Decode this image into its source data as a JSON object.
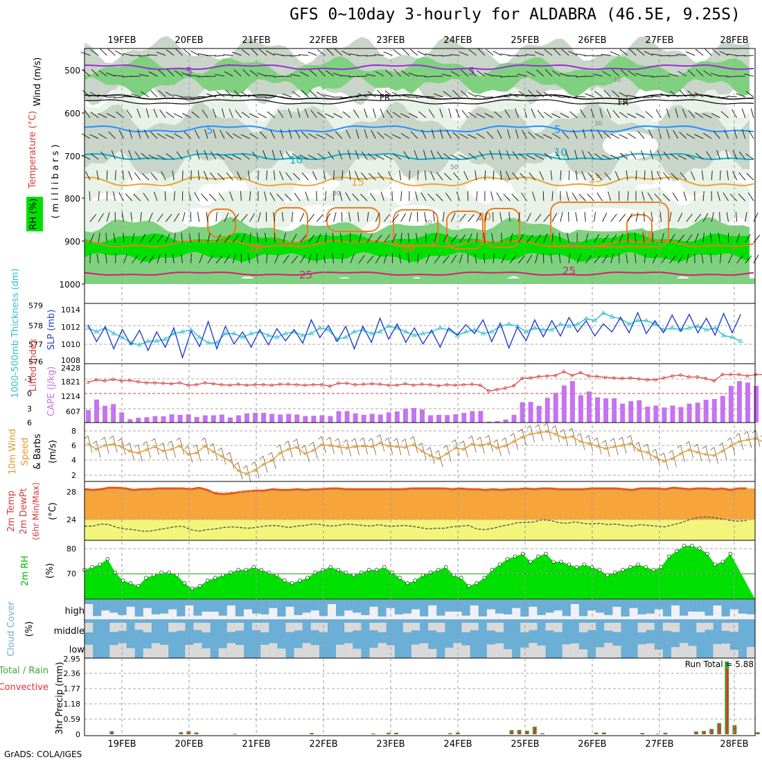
{
  "header": {
    "title": "GFS 0~10day 3-hourly for ALDABRA (46.5E, 9.25S)"
  },
  "footer": {
    "credit": "GrADS: COLA/IGES"
  },
  "dates": [
    "19FEB",
    "20FEB",
    "21FEB",
    "22FEB",
    "23FEB",
    "24FEB",
    "25FEB",
    "26FEB",
    "27FEB",
    "28FEB"
  ],
  "colors": {
    "rh_light": "#e8f2e8",
    "rh_grey": "#c9d5c9",
    "rh_mid": "#7fd17f",
    "rh_bright": "#00e000",
    "temp_5": "#9a2bd6",
    "temp_fr": "#000000",
    "temp_5b": "#1e90ff",
    "temp_10": "#00b2c8",
    "temp_15": "#e5a530",
    "temp_20": "#ee7a22",
    "temp_25": "#d81a7a",
    "slp": "#1f3fcf",
    "thickness": "#2fbfd0",
    "cape": "#c673f0",
    "li": "#d83a3a",
    "wind": "#e09a30",
    "temp2m": "#f7a43a",
    "temp2m_top": "#e45a12",
    "dewpt": "#f2f57a",
    "rh2m": "#00e000",
    "rh2m_dark": "#00b800",
    "cloud": "#6baed6",
    "cloud_clear": "#f2f0f7",
    "cloud_grey": "#d9d9d9",
    "precip_total": "#3aa832",
    "precip_conv": "#e03232"
  },
  "panels": {
    "upper": {
      "labels": {
        "rh": "RH (%)",
        "temp": "Temperature (°C)",
        "wind": "Wind (m/s)",
        "pressure": "( m i l l i b a r s )"
      },
      "ticks": [
        "500",
        "600",
        "700",
        "800",
        "900",
        "1000"
      ],
      "contour_labels": [
        "5",
        "5",
        "FR",
        "FR",
        "5",
        "5",
        "10",
        "10",
        "15",
        "15",
        "20",
        "20",
        "20",
        "20",
        "25",
        "25"
      ],
      "rh_labels": [
        "30",
        "50",
        "30",
        "30",
        "50",
        "30",
        "30"
      ]
    },
    "slp": {
      "labels": {
        "thickness": "1000-500mb Thickness (dm)",
        "slp": "SLP (mb)"
      },
      "left_ticks": [
        "579",
        "578",
        "577",
        "576"
      ],
      "right_ticks": [
        "1014",
        "1012",
        "1010",
        "1008"
      ]
    },
    "cape": {
      "labels": {
        "li": "Lifted Index",
        "cape": "CAPE (J/kg)"
      },
      "left_ticks": [
        "-3",
        "0",
        "3",
        "6"
      ],
      "right_ticks": [
        "2428",
        "1821",
        "1214",
        "607"
      ]
    },
    "wind10": {
      "labels": {
        "l1": "10m Wind",
        "l2": "Speed",
        "l3": "& Barbs",
        "unit": "(m/s)"
      },
      "ticks": [
        "8",
        "6",
        "4",
        "2"
      ]
    },
    "temp2m": {
      "labels": {
        "l1": "2m Temp",
        "l2": "2m DewPt",
        "l3": "(6hr Min/Max)",
        "unit": "(°C)"
      },
      "ticks": [
        "28",
        "24"
      ]
    },
    "rh2m": {
      "labels": {
        "l1": "2m RH",
        "unit": "(%)"
      },
      "ticks": [
        "80",
        "70"
      ]
    },
    "cloud": {
      "labels": {
        "l1": "Cloud Cover",
        "unit": "(%)"
      },
      "levels": [
        "high",
        "middle",
        "low"
      ]
    },
    "precip": {
      "labels": {
        "total": "Total / Rain",
        "conv": "Convective",
        "unit": "3hr Precip (mm)",
        "run_total_label": "Run Total = ",
        "run_total": "5.88"
      },
      "ticks": [
        "2.95",
        "2.36",
        "1.77",
        "1.18",
        "0.59",
        "0"
      ]
    }
  },
  "chart_data": [
    {
      "type": "line",
      "title": "SLP",
      "ylabel": "SLP (mb)",
      "ylim": [
        1008,
        1015
      ],
      "values": [
        1012.6,
        1010.5,
        1012.3,
        1009.6,
        1012.0,
        1010.1,
        1011.9,
        1009.4,
        1011.7,
        1009.8,
        1012.2,
        1008.5,
        1011.8,
        1009.9,
        1013.0,
        1009.6,
        1012.4,
        1010.2,
        1011.7,
        1009.8,
        1012.0,
        1010.1,
        1012.1,
        1010.6,
        1012.0,
        1010.3,
        1013.2,
        1011.0,
        1012.5,
        1010.5,
        1012.4,
        1009.6,
        1012.4,
        1010.4,
        1013.4,
        1010.8,
        1012.7,
        1010.4,
        1012.2,
        1010.2,
        1011.9,
        1009.8,
        1012.2,
        1011.3,
        1012.6,
        1011.5,
        1013.2,
        1010.5,
        1012.8,
        1009.7,
        1012.3,
        1010.6,
        1013.2,
        1011.1,
        1013.1,
        1011.2,
        1013.5,
        1011.7,
        1013.1,
        1011.2,
        1012.7,
        1011.7,
        1013.5,
        1011.6,
        1014.1,
        1011.5,
        1013.1,
        1011.6,
        1013.8,
        1011.8,
        1013.9,
        1011.6,
        1013.4,
        1011.3,
        1014.0,
        1011.6,
        1013.9
      ]
    },
    {
      "type": "line",
      "title": "1000-500mb Thickness",
      "ylabel": "(dm)",
      "ylim": [
        576,
        579
      ],
      "values": [
        577.8,
        577.6,
        577.8,
        577.5,
        577.3,
        577.0,
        576.9,
        577.1,
        577.1,
        577.2,
        577.5,
        577.6,
        577.7,
        577.3,
        577.0,
        577.0,
        577.5,
        577.5,
        577.3,
        577.5,
        577.6,
        577.4,
        577.3,
        577.5,
        577.6,
        577.4,
        577.5,
        577.8,
        577.7,
        577.2,
        577.3,
        577.6,
        577.7,
        577.5,
        577.6,
        577.9,
        577.8,
        577.6,
        577.4,
        577.5,
        577.6,
        577.8,
        577.7,
        577.4,
        577.6,
        577.7,
        577.5,
        577.6,
        577.9,
        578.0,
        577.9,
        577.6,
        577.8,
        577.7,
        577.7,
        578.0,
        577.9,
        578.0,
        578.3,
        578.2,
        578.6,
        578.4,
        578.3,
        578.0,
        578.2,
        578.2,
        578.0,
        577.7,
        577.8,
        577.7,
        577.8,
        577.9,
        577.7,
        577.8,
        577.4,
        577.3,
        577.1
      ]
    },
    {
      "type": "bar",
      "title": "CAPE",
      "ylabel": "CAPE (J/kg)",
      "ylim": [
        0,
        2428
      ],
      "values": [
        520,
        950,
        690,
        760,
        420,
        140,
        200,
        220,
        270,
        260,
        340,
        320,
        340,
        230,
        300,
        300,
        330,
        210,
        300,
        380,
        400,
        400,
        360,
        330,
        360,
        330,
        270,
        280,
        300,
        270,
        470,
        470,
        380,
        320,
        360,
        330,
        420,
        460,
        570,
        600,
        540,
        300,
        320,
        310,
        340,
        400,
        470,
        480,
        40,
        60,
        130,
        320,
        840,
        850,
        690,
        1020,
        1230,
        1530,
        1710,
        1130,
        1280,
        1040,
        1000,
        1000,
        780,
        880,
        920,
        660,
        700,
        620,
        700,
        640,
        780,
        820,
        940,
        970,
        1100,
        1510,
        1710,
        1650,
        1510,
        1250
      ]
    },
    {
      "type": "line",
      "title": "Lifted Index",
      "ylim": [
        -4.5,
        6
      ],
      "values": [
        -2.3,
        -2.8,
        -2.6,
        -2.9,
        -2.6,
        -2.7,
        -2.4,
        -2.2,
        -2.2,
        -2.1,
        -2.0,
        -2.2,
        -1.7,
        -1.8,
        -2.2,
        -2.0,
        -1.8,
        -1.7,
        -1.9,
        -1.7,
        -1.8,
        -1.8,
        -1.7,
        -1.9,
        -1.9,
        -1.8,
        -1.7,
        -1.8,
        -1.8,
        -1.5,
        -2.1,
        -2.1,
        -1.8,
        -1.9,
        -2.0,
        -1.9,
        -1.7,
        -1.7,
        -2.0,
        -1.7,
        -1.9,
        -1.8,
        -1.6,
        -1.8,
        -1.7,
        -1.8,
        -1.9,
        -1.7,
        -0.5,
        -0.8,
        -1.1,
        -1.6,
        -3.1,
        -3.2,
        -3.5,
        -3.6,
        -3.7,
        -4.5,
        -3.7,
        -4.3,
        -3.6,
        -3.5,
        -3.3,
        -3.2,
        -3.1,
        -3.2,
        -3.0,
        -2.8,
        -2.8,
        -3.2,
        -3.6,
        -3.8,
        -3.4,
        -3.4,
        -3.1,
        -2.6,
        -3.9,
        -3.9,
        -3.9,
        -3.6,
        -3.9,
        -3.9
      ]
    },
    {
      "type": "line",
      "title": "10m Wind Speed",
      "ylabel": "(m/s)",
      "ylim": [
        1.5,
        8.5
      ],
      "values": [
        6.4,
        5.6,
        6.2,
        6.4,
        6.0,
        5.3,
        5.0,
        5.5,
        6.0,
        5.3,
        5.6,
        6.1,
        4.8,
        5.0,
        6.1,
        5.2,
        4.5,
        3.8,
        2.2,
        1.7,
        2.3,
        3.2,
        3.8,
        5.0,
        5.6,
        5.9,
        4.9,
        5.4,
        6.3,
        6.2,
        6.0,
        5.8,
        6.0,
        6.1,
        6.0,
        6.6,
        6.1,
        6.0,
        5.9,
        6.3,
        5.3,
        4.6,
        4.1,
        4.9,
        5.8,
        5.6,
        6.4,
        6.2,
        6.5,
        5.8,
        6.1,
        6.8,
        7.5,
        8.0,
        8.2,
        8.4,
        8.0,
        7.4,
        7.6,
        6.8,
        6.5,
        6.1,
        5.7,
        6.0,
        6.2,
        6.5,
        5.4,
        5.1,
        4.3,
        3.7,
        4.1,
        4.9,
        5.5,
        5.1,
        4.8,
        4.6,
        5.3,
        6.1,
        6.8,
        7.1,
        7.3,
        6.7
      ]
    },
    {
      "type": "area",
      "title": "2m Temp",
      "ylabel": "(°C)",
      "ylim": [
        22,
        28.8
      ],
      "values": [
        28.2,
        28.1,
        28.2,
        28.4,
        28.4,
        28.3,
        28.1,
        28.2,
        28.2,
        28.3,
        28.3,
        28.3,
        28.3,
        28.2,
        28.4,
        28.1,
        27.6,
        27.5,
        27.6,
        27.8,
        27.9,
        28.0,
        28.0,
        28.2,
        28.1,
        28.1,
        28.2,
        28.1,
        28.2,
        28.2,
        28.3,
        28.3,
        28.2,
        28.2,
        28.2,
        28.2,
        28.2,
        28.2,
        28.2,
        28.2,
        28.3,
        28.3,
        28.3,
        28.3,
        28.3,
        28.2,
        28.3,
        28.2,
        28.2,
        28.1,
        28.2,
        28.1,
        28.2,
        28.2,
        28.3,
        28.2,
        28.3,
        28.3,
        28.2,
        28.2,
        28.2,
        28.2,
        28.3,
        28.3,
        28.3,
        28.3,
        28.2,
        28.1,
        28.3,
        28.3,
        28.3,
        28.2,
        28.4,
        28.3,
        28.2,
        28.3,
        28.3,
        28.2,
        28.3,
        28.1,
        28.3,
        28.3
      ]
    },
    {
      "type": "line",
      "title": "2m DewPt",
      "ylabel": "(°C)",
      "ylim": [
        22,
        28.8
      ],
      "values": [
        23.0,
        23.0,
        23.3,
        23.2,
        22.8,
        22.6,
        22.5,
        22.3,
        22.3,
        22.5,
        22.7,
        22.9,
        23.0,
        22.5,
        22.3,
        22.5,
        22.6,
        22.8,
        22.9,
        22.8,
        22.7,
        22.8,
        23.0,
        23.1,
        23.0,
        22.8,
        23.0,
        23.1,
        23.3,
        23.2,
        23.0,
        23.1,
        23.3,
        23.2,
        23.1,
        23.0,
        23.2,
        23.0,
        23.0,
        23.1,
        23.0,
        22.8,
        22.6,
        22.7,
        22.7,
        22.9,
        23.0,
        23.1,
        22.6,
        22.5,
        22.7,
        23.0,
        23.2,
        23.5,
        23.5,
        23.6,
        23.9,
        23.8,
        23.5,
        23.4,
        23.6,
        23.4,
        23.3,
        23.4,
        23.2,
        23.3,
        23.1,
        23.0,
        23.2,
        23.1,
        23.0,
        22.9,
        23.2,
        23.5,
        23.9,
        24.2,
        24.3,
        24.2,
        24.0,
        23.8,
        23.7,
        23.8
      ]
    },
    {
      "type": "area",
      "title": "2m RH",
      "ylabel": "(%)",
      "ylim": [
        63,
        82
      ],
      "values": [
        71,
        72,
        73,
        75,
        70,
        67,
        66,
        65,
        68,
        69,
        70,
        70,
        69,
        66,
        64,
        65,
        67,
        68,
        69,
        70,
        71,
        71,
        72,
        71,
        70,
        69,
        67,
        66,
        67,
        68,
        70,
        71,
        72,
        71,
        70,
        69,
        70,
        71,
        71,
        72,
        70,
        68,
        66,
        67,
        69,
        70,
        71,
        72,
        69,
        68,
        65,
        66,
        68,
        71,
        73,
        75,
        76,
        77,
        74,
        76,
        77,
        74,
        74,
        73,
        72,
        73,
        72,
        71,
        69,
        70,
        71,
        72,
        73,
        72,
        71,
        72,
        76,
        78,
        80,
        80,
        79,
        77,
        73,
        74,
        77
      ]
    },
    {
      "type": "bar",
      "title": "3hr Precip",
      "ylabel": "3hr Precip (mm)",
      "ylim": [
        0,
        2.95
      ],
      "categories_note": "run total 5.88",
      "values": [
        0,
        0,
        0,
        0.12,
        0,
        0,
        0,
        0,
        0,
        0,
        0,
        0,
        0.08,
        0.12,
        0.07,
        0,
        0,
        0,
        0,
        0.02,
        0,
        0,
        0,
        0,
        0,
        0,
        0,
        0,
        0,
        0.05,
        0,
        0,
        0,
        0,
        0,
        0,
        0,
        0.03,
        0,
        0.06,
        0.06,
        0,
        0,
        0,
        0,
        0,
        0,
        0.04,
        0.07,
        0,
        0,
        0,
        0,
        0,
        0,
        0.16,
        0.17,
        0.14,
        0.3,
        0.04,
        0,
        0,
        0,
        0,
        0,
        0,
        0.07,
        0.07,
        0,
        0,
        0,
        0,
        0.05,
        0,
        0.02,
        0.06,
        0,
        0,
        0,
        0.11,
        0.13,
        0.21,
        0.44,
        2.85,
        0.36,
        0,
        0,
        0.08
      ]
    }
  ]
}
